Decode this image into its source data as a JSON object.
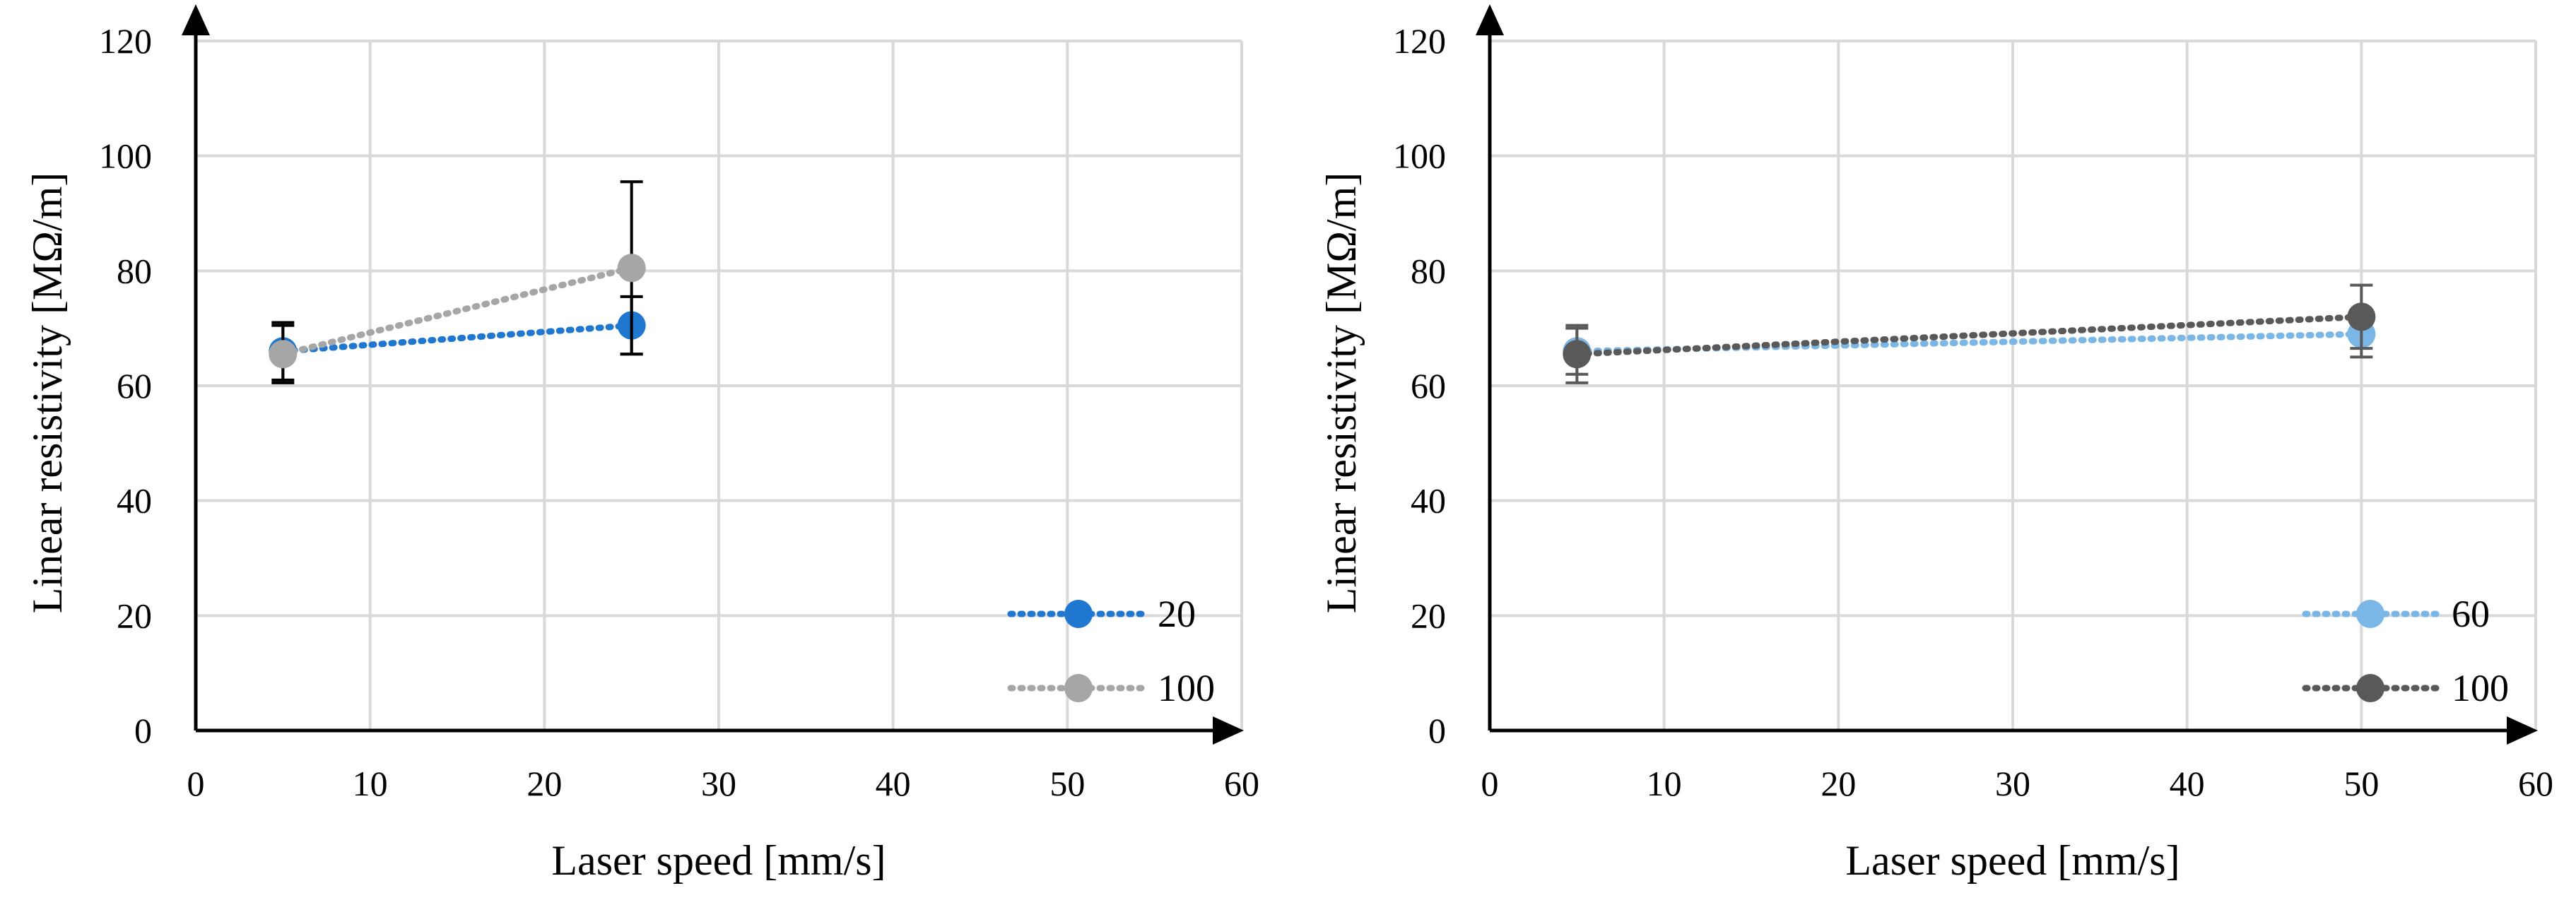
{
  "chart_data": [
    {
      "type": "line",
      "xlabel": "Laser speed [mm/s]",
      "ylabel": "Linear resistivity [MΩ/m]",
      "xlim": [
        0,
        60
      ],
      "ylim": [
        0,
        120
      ],
      "x_ticks": [
        "0",
        "10",
        "20",
        "30",
        "40",
        "50",
        "60"
      ],
      "y_ticks": [
        "0",
        "20",
        "40",
        "60",
        "80",
        "100",
        "120"
      ],
      "grid": true,
      "legend_position": "bottom-right",
      "series": [
        {
          "name": "20",
          "color": "#1f77d0",
          "line_style": "dotted",
          "points": [
            {
              "x": 5,
              "y": 66,
              "err": 5
            },
            {
              "x": 25,
              "y": 70.5,
              "err": 5
            }
          ]
        },
        {
          "name": "100",
          "color": "#a6a6a6",
          "line_style": "dotted",
          "points": [
            {
              "x": 5,
              "y": 65.5,
              "err": 5
            },
            {
              "x": 25,
              "y": 80.5,
              "err": 15
            }
          ]
        }
      ]
    },
    {
      "type": "line",
      "xlabel": "Laser speed [mm/s]",
      "ylabel": "Linear resistivity [MΩ/m]",
      "xlim": [
        0,
        60
      ],
      "ylim": [
        0,
        120
      ],
      "x_ticks": [
        "0",
        "10",
        "20",
        "30",
        "40",
        "50",
        "60"
      ],
      "y_ticks": [
        "0",
        "20",
        "40",
        "60",
        "80",
        "100",
        "120"
      ],
      "grid": true,
      "legend_position": "bottom-right",
      "series": [
        {
          "name": "60",
          "color": "#7ab7e6",
          "line_style": "dotted",
          "points": [
            {
              "x": 5,
              "y": 66,
              "err": 4
            },
            {
              "x": 50,
              "y": 69,
              "err": 4
            }
          ]
        },
        {
          "name": "100",
          "color": "#595959",
          "line_style": "dotted",
          "points": [
            {
              "x": 5,
              "y": 65.5,
              "err": 5
            },
            {
              "x": 50,
              "y": 72,
              "err": 5.5
            }
          ]
        }
      ]
    }
  ]
}
